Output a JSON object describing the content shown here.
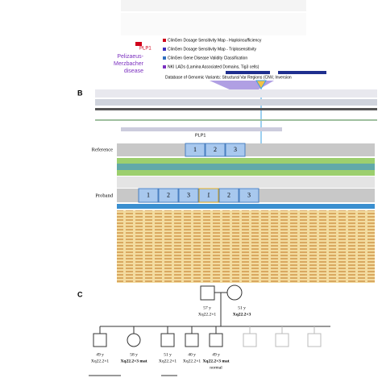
{
  "panel_a": {
    "gene": "PLP1",
    "disease_lines": [
      "Pelizaeus-",
      "Merzbacher",
      "disease"
    ],
    "tracks": [
      "ClinGen Dosage Sensitivity Map - Haploinsufficiency",
      "ClinGen Dosage Sensitivity Map - Triplosensitivity",
      "ClinGen Gene Disease Validity Classification",
      "NKI LADs (Lamina Associated Domains, Tig3 cells)",
      "Database of Genomic Variants: Structural Var Regions (CNV, Inversion"
    ]
  },
  "panel_b": {
    "label": "B",
    "gene": "PLP1",
    "reference": "Reference",
    "proband": "Proband",
    "reference_segments": [
      "1",
      "2",
      "3"
    ],
    "proband_segments": [
      "1",
      "2",
      "3",
      "1",
      "2",
      "3"
    ]
  },
  "panel_c": {
    "label": "C",
    "father": {
      "age": "57 y",
      "karyotype": "Xq22.2×1"
    },
    "mother": {
      "age": "51 y",
      "karyotype": "Xq22.2×3"
    },
    "children": [
      {
        "age": "49 y",
        "karyotype": "Xq22.2×1"
      },
      {
        "age": "58 y",
        "karyotype": "Xq22.2×3 mat"
      },
      {
        "age": "51 y",
        "karyotype": "Xq22.2×1"
      },
      {
        "age": "40 y",
        "karyotype": "Xq22.2×1"
      },
      {
        "age": "49 y",
        "karyotype": "Xq22.2×3 mat",
        "note": "normal"
      }
    ]
  }
}
